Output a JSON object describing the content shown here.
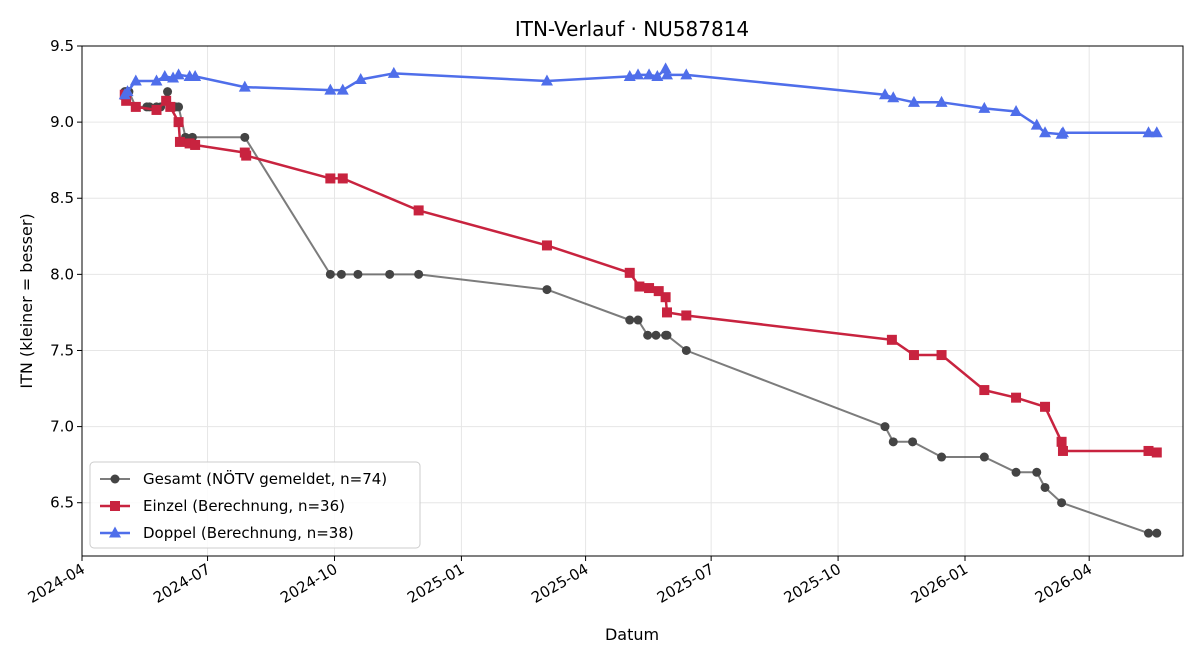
{
  "chart_data": {
    "type": "line",
    "title": "ITN-Verlauf · NU587814",
    "xlabel": "Datum",
    "ylabel": "ITN  (kleiner = besser)",
    "x_axis_kind": "date",
    "xlim": [
      "2024-04-01",
      "2026-06-08"
    ],
    "ylim": [
      6.15,
      9.5
    ],
    "x_ticks": [
      "2024-04",
      "2024-07",
      "2024-10",
      "2025-01",
      "2025-04",
      "2025-07",
      "2025-10",
      "2026-01",
      "2026-04"
    ],
    "y_ticks": [
      6.5,
      7.0,
      7.5,
      8.0,
      8.5,
      9.0,
      9.5
    ],
    "grid": true,
    "legend_position": "lower-left",
    "series": [
      {
        "name": "Gesamt (NÖTV gemeldet, n=74)",
        "color": "#444444",
        "marker": "circle",
        "points": [
          [
            "2024-05-02",
            9.2
          ],
          [
            "2024-05-03",
            9.2
          ],
          [
            "2024-05-04",
            9.2
          ],
          [
            "2024-05-05",
            9.2
          ],
          [
            "2024-05-10",
            9.1
          ],
          [
            "2024-05-18",
            9.1
          ],
          [
            "2024-05-20",
            9.1
          ],
          [
            "2024-05-25",
            9.1
          ],
          [
            "2024-05-28",
            9.1
          ],
          [
            "2024-06-02",
            9.2
          ],
          [
            "2024-06-04",
            9.1
          ],
          [
            "2024-06-08",
            9.1
          ],
          [
            "2024-06-10",
            9.1
          ],
          [
            "2024-06-15",
            8.9
          ],
          [
            "2024-06-20",
            8.9
          ],
          [
            "2024-07-28",
            8.9
          ],
          [
            "2024-09-28",
            8.0
          ],
          [
            "2024-10-06",
            8.0
          ],
          [
            "2024-10-18",
            8.0
          ],
          [
            "2024-11-10",
            8.0
          ],
          [
            "2024-12-01",
            8.0
          ],
          [
            "2025-03-04",
            7.9
          ],
          [
            "2025-05-03",
            7.7
          ],
          [
            "2025-05-09",
            7.7
          ],
          [
            "2025-05-16",
            7.6
          ],
          [
            "2025-05-22",
            7.6
          ],
          [
            "2025-05-29",
            7.6
          ],
          [
            "2025-05-30",
            7.6
          ],
          [
            "2025-06-13",
            7.5
          ],
          [
            "2025-11-04",
            7.0
          ],
          [
            "2025-11-10",
            6.9
          ],
          [
            "2025-11-24",
            6.9
          ],
          [
            "2025-12-15",
            6.8
          ],
          [
            "2026-01-15",
            6.8
          ],
          [
            "2026-02-07",
            6.7
          ],
          [
            "2026-02-22",
            6.7
          ],
          [
            "2026-02-28",
            6.6
          ],
          [
            "2026-03-12",
            6.5
          ],
          [
            "2026-05-14",
            6.3
          ],
          [
            "2026-05-20",
            6.3
          ]
        ]
      },
      {
        "name": "Einzel (Berechnung, n=36)",
        "color": "#C8233F",
        "marker": "square",
        "points": [
          [
            "2024-05-02",
            9.18
          ],
          [
            "2024-05-03",
            9.14
          ],
          [
            "2024-05-10",
            9.1
          ],
          [
            "2024-05-25",
            9.08
          ],
          [
            "2024-06-01",
            9.14
          ],
          [
            "2024-06-04",
            9.1
          ],
          [
            "2024-06-10",
            9.0
          ],
          [
            "2024-06-11",
            8.87
          ],
          [
            "2024-06-18",
            8.86
          ],
          [
            "2024-06-22",
            8.85
          ],
          [
            "2024-07-28",
            8.8
          ],
          [
            "2024-07-29",
            8.78
          ],
          [
            "2024-09-28",
            8.63
          ],
          [
            "2024-10-07",
            8.63
          ],
          [
            "2024-12-01",
            8.42
          ],
          [
            "2025-03-04",
            8.19
          ],
          [
            "2025-05-03",
            8.01
          ],
          [
            "2025-05-10",
            7.92
          ],
          [
            "2025-05-17",
            7.91
          ],
          [
            "2025-05-24",
            7.89
          ],
          [
            "2025-05-29",
            7.85
          ],
          [
            "2025-05-30",
            7.75
          ],
          [
            "2025-06-13",
            7.73
          ],
          [
            "2025-11-09",
            7.57
          ],
          [
            "2025-11-25",
            7.47
          ],
          [
            "2025-12-15",
            7.47
          ],
          [
            "2026-01-15",
            7.24
          ],
          [
            "2026-02-07",
            7.19
          ],
          [
            "2026-02-28",
            7.13
          ],
          [
            "2026-03-12",
            6.9
          ],
          [
            "2026-03-13",
            6.84
          ],
          [
            "2026-05-14",
            6.84
          ],
          [
            "2026-05-20",
            6.83
          ]
        ]
      },
      {
        "name": "Doppel (Berechnung, n=38)",
        "color": "#4F6EEA",
        "marker": "triangle",
        "points": [
          [
            "2024-05-02",
            9.18
          ],
          [
            "2024-05-04",
            9.2
          ],
          [
            "2024-05-10",
            9.27
          ],
          [
            "2024-05-25",
            9.27
          ],
          [
            "2024-05-31",
            9.3
          ],
          [
            "2024-06-06",
            9.29
          ],
          [
            "2024-06-10",
            9.31
          ],
          [
            "2024-06-18",
            9.3
          ],
          [
            "2024-06-22",
            9.3
          ],
          [
            "2024-07-28",
            9.23
          ],
          [
            "2024-09-28",
            9.21
          ],
          [
            "2024-10-07",
            9.21
          ],
          [
            "2024-10-20",
            9.28
          ],
          [
            "2024-11-13",
            9.32
          ],
          [
            "2025-03-04",
            9.27
          ],
          [
            "2025-05-03",
            9.3
          ],
          [
            "2025-05-09",
            9.31
          ],
          [
            "2025-05-17",
            9.31
          ],
          [
            "2025-05-23",
            9.3
          ],
          [
            "2025-05-29",
            9.35
          ],
          [
            "2025-05-30",
            9.31
          ],
          [
            "2025-06-13",
            9.31
          ],
          [
            "2025-11-04",
            9.18
          ],
          [
            "2025-11-10",
            9.16
          ],
          [
            "2025-11-25",
            9.13
          ],
          [
            "2025-12-15",
            9.13
          ],
          [
            "2026-01-15",
            9.09
          ],
          [
            "2026-02-07",
            9.07
          ],
          [
            "2026-02-22",
            8.98
          ],
          [
            "2026-02-28",
            8.93
          ],
          [
            "2026-03-12",
            8.92
          ],
          [
            "2026-03-13",
            8.93
          ],
          [
            "2026-05-14",
            8.93
          ],
          [
            "2026-05-20",
            8.93
          ]
        ]
      }
    ]
  }
}
